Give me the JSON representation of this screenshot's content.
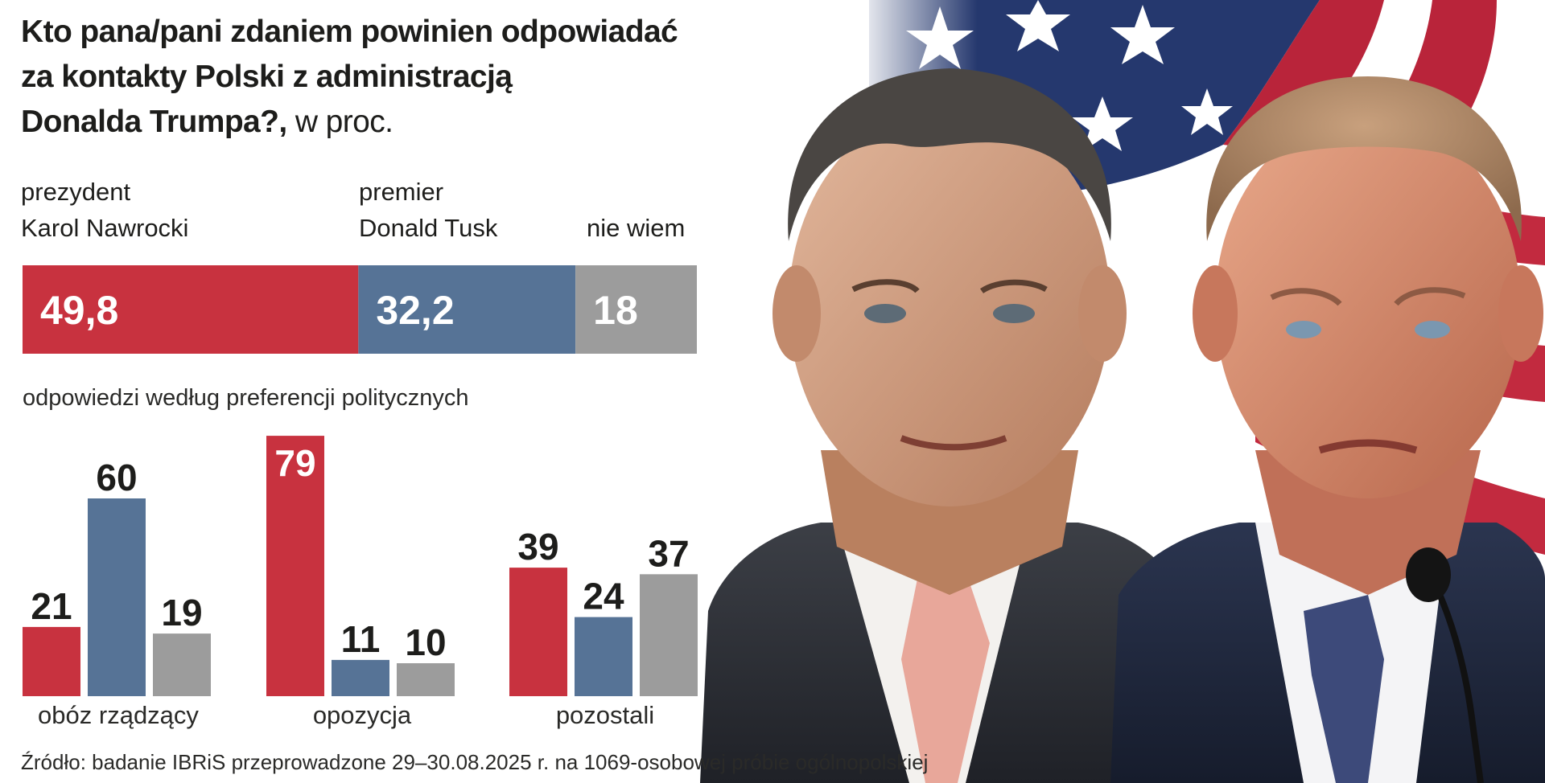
{
  "title": {
    "line1": "Kto pana/pani zdaniem powinien odpowiadać",
    "line2": "za kontakty Polski z administracją",
    "line3": "Donalda Trumpa?,",
    "unit": " w proc."
  },
  "colors": {
    "nawrocki": "#c8323f",
    "tusk": "#567396",
    "dont_know": "#9c9c9c",
    "text": "#1d1d1b"
  },
  "photo": {
    "description_icon": "portrait-photo",
    "flag_icon": "us-flag"
  },
  "chart_data": [
    {
      "type": "bar",
      "orientation": "horizontal-stacked",
      "categories": [
        "prezydent Karol Nawrocki",
        "premier Donald Tusk",
        "nie wiem"
      ],
      "labels": [
        {
          "line1": "prezydent",
          "line2": "Karol Nawrocki"
        },
        {
          "line1": "premier",
          "line2": "Donald Tusk"
        },
        {
          "line1": "",
          "line2": "nie wiem"
        }
      ],
      "values": [
        49.8,
        32.2,
        18
      ],
      "value_labels": [
        "49,8",
        "32,2",
        "18"
      ],
      "total": 100
    },
    {
      "type": "bar",
      "subtitle": "odpowiedzi według preferencji politycznych",
      "categories": [
        "obóz rządzący",
        "opozycja",
        "pozostali"
      ],
      "series": [
        {
          "name": "prezydent Karol Nawrocki",
          "values": [
            21,
            79,
            39
          ]
        },
        {
          "name": "premier Donald Tusk",
          "values": [
            60,
            11,
            24
          ]
        },
        {
          "name": "nie wiem",
          "values": [
            19,
            10,
            37
          ]
        }
      ],
      "ylim": [
        0,
        79
      ],
      "grid": false,
      "legend": "none"
    }
  ],
  "source": "Źródło: badanie IBRiS przeprowadzone 29–30.08.2025 r. na 1069-osobowej próbie ogólnopolskiej"
}
